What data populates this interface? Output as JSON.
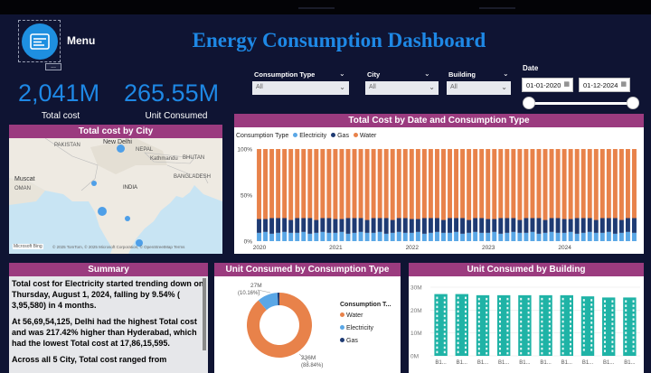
{
  "header": {
    "menu_label": "Menu",
    "more_label": "...",
    "title": "Energy Consumption Dashboard",
    "menu_icon": "menu-icon"
  },
  "kpis": [
    {
      "value": "2,041M",
      "label": "Total cost"
    },
    {
      "value": "265.55M",
      "label": "Unit Consumed"
    }
  ],
  "filters": {
    "consumption_type": {
      "label": "Consumption Type",
      "value": "All"
    },
    "city": {
      "label": "City",
      "value": "All"
    },
    "building": {
      "label": "Building",
      "value": "All"
    },
    "date": {
      "label": "Date",
      "start": "01-01-2020",
      "end": "01-12-2024"
    }
  },
  "map_panel": {
    "title": "Total cost by City",
    "labels": [
      "PAKISTAN",
      "New Delhi",
      "Kathmandu",
      "BHUTAN",
      "NEPAL",
      "INDIA",
      "BANGLADESH",
      "Muscat",
      "OMAN"
    ],
    "attribution": "© 2025 TomTom, © 2025 Microsoft Corporation, © OpenStreetMap  Terms",
    "brand": "Microsoft Bing"
  },
  "summary_panel": {
    "title": "Summary",
    "paragraphs": [
      "Total cost for Electricity started trending down on Thursday, August 1, 2024, falling by 9.54% ( 3,95,580) in 4 months.",
      "At 56,69,54,125, Delhi had the highest Total cost and was 217.42% higher than Hyderabad, which had the lowest Total cost at 17,86,15,595.",
      "Across all 5 City, Total cost ranged from"
    ]
  },
  "colors": {
    "electricity": "#5aa7e6",
    "gas": "#1f3b73",
    "water": "#e8824a",
    "panel_header": "#9b3b7f",
    "building_bar": "#1fb3a6"
  },
  "chart_data": [
    {
      "type": "bar",
      "stacked": "100%",
      "title": "Total Cost by Date and Consumption Type",
      "legend_title": "Consumption Type",
      "legend_position": "top-left",
      "series": [
        {
          "name": "Electricity",
          "values": [
            9,
            10,
            8,
            9,
            10,
            9,
            9,
            10,
            8,
            9,
            10,
            9,
            9,
            10,
            8,
            9,
            10,
            9,
            9,
            10,
            8,
            9,
            10,
            9,
            9,
            10,
            8,
            9,
            10,
            9,
            9,
            10,
            8,
            9,
            10,
            9,
            9,
            10,
            8,
            9,
            10,
            9,
            9,
            10,
            8,
            9,
            10,
            9,
            9,
            10,
            8,
            9,
            10,
            9,
            9,
            10,
            8,
            9,
            10,
            9
          ]
        },
        {
          "name": "Gas",
          "values": [
            15,
            14,
            17,
            16,
            15,
            14,
            16,
            15,
            17,
            14,
            15,
            16,
            15,
            14,
            17,
            16,
            15,
            14,
            16,
            15,
            17,
            14,
            15,
            16,
            15,
            14,
            17,
            16,
            15,
            14,
            16,
            15,
            17,
            14,
            15,
            16,
            15,
            14,
            17,
            16,
            15,
            14,
            16,
            15,
            17,
            14,
            15,
            16,
            15,
            14,
            17,
            16,
            15,
            14,
            16,
            15,
            17,
            14,
            15,
            16
          ]
        },
        {
          "name": "Water",
          "values": [
            76,
            76,
            75,
            75,
            75,
            77,
            75,
            75,
            75,
            77,
            75,
            75,
            76,
            76,
            75,
            75,
            75,
            77,
            75,
            75,
            75,
            77,
            75,
            75,
            76,
            76,
            75,
            75,
            75,
            77,
            75,
            75,
            75,
            77,
            75,
            75,
            76,
            76,
            75,
            75,
            75,
            77,
            75,
            75,
            75,
            77,
            75,
            75,
            76,
            76,
            75,
            75,
            75,
            77,
            75,
            75,
            75,
            77,
            75,
            75
          ]
        }
      ],
      "x_tick_labels": [
        "2020",
        "2021",
        "2022",
        "2023",
        "2024"
      ],
      "y_tick_labels": [
        "0%",
        "50%",
        "100%"
      ],
      "ylim": [
        0,
        100
      ]
    },
    {
      "type": "pie",
      "donut": true,
      "title": "Unit Consumed by Consumption Type",
      "legend_title": "Consumption T...",
      "legend_position": "right",
      "slices": [
        {
          "name": "Water",
          "value": 236,
          "label": "236M",
          "percent": "(88.84%)"
        },
        {
          "name": "Electricity",
          "value": 27,
          "label": "27M",
          "percent": "(10.16%)"
        },
        {
          "name": "Gas",
          "value": 2.65,
          "label": "",
          "percent": ""
        }
      ]
    },
    {
      "type": "bar",
      "title": "Unit Consumed by Building",
      "y_tick_labels": [
        "0M",
        "10M",
        "20M",
        "30M"
      ],
      "ylim": [
        0,
        30
      ],
      "categories": [
        "B1...",
        "B1...",
        "B1...",
        "B1...",
        "B1...",
        "B1...",
        "B1...",
        "B1...",
        "B1...",
        "B1..."
      ],
      "values": [
        27,
        27,
        26.5,
        26.5,
        26.5,
        26.5,
        26.5,
        26,
        25.5,
        25.5
      ]
    }
  ]
}
